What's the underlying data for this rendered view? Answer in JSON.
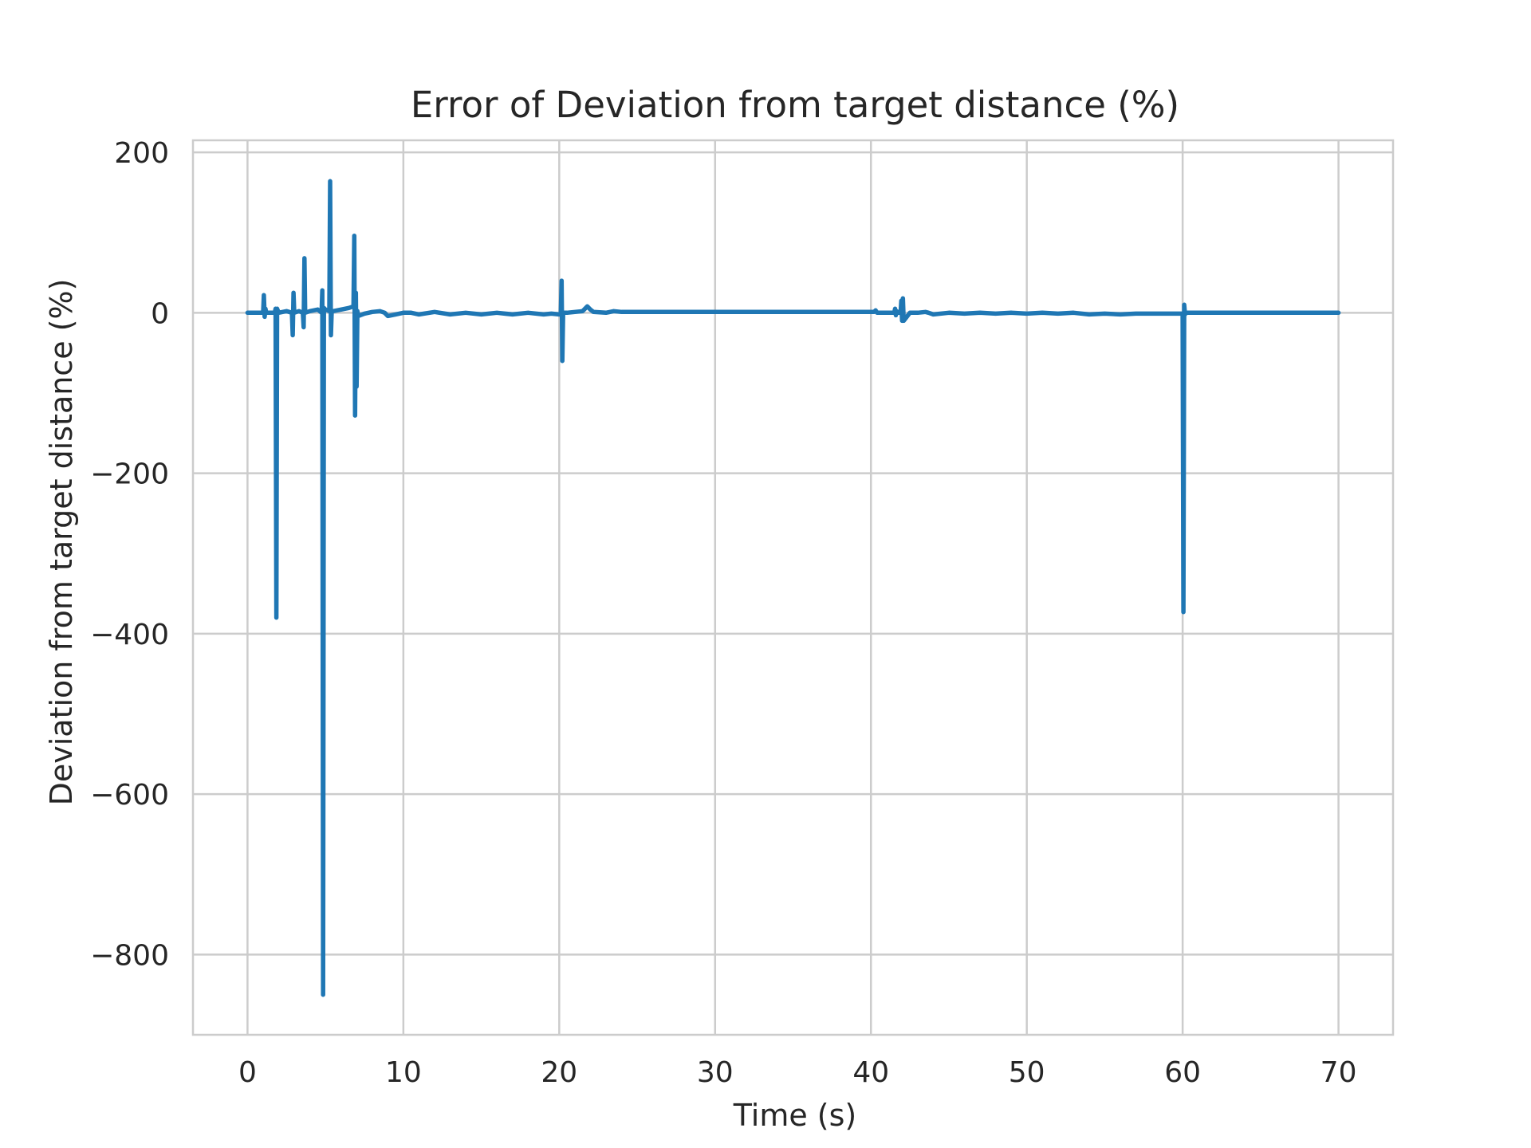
{
  "chart_data": {
    "type": "line",
    "title": "Error of Deviation from target distance (%)",
    "xlabel": "Time (s)",
    "ylabel": "Deviation from target distance (%)",
    "xlim": [
      -3.5,
      73.5
    ],
    "ylim": [
      -900,
      215
    ],
    "xticks": [
      0,
      10,
      20,
      30,
      40,
      50,
      60,
      70
    ],
    "yticks": [
      -800,
      -600,
      -400,
      -200,
      0,
      200
    ],
    "xtick_labels": [
      "0",
      "10",
      "20",
      "30",
      "40",
      "50",
      "60",
      "70"
    ],
    "ytick_labels": [
      "−800",
      "−600",
      "−400",
      "−200",
      "0",
      "200"
    ],
    "grid": true,
    "color": "#1f77b4",
    "series": [
      {
        "x": [
          0,
          0.5,
          1.0,
          1.05,
          1.1,
          1.15,
          1.2,
          1.5,
          1.75,
          1.8,
          1.85,
          1.9,
          2.0,
          2.5,
          2.85,
          2.9,
          2.95,
          3.0,
          3.3,
          3.55,
          3.6,
          3.65,
          3.7,
          4.0,
          4.5,
          4.75,
          4.8,
          4.85,
          4.9,
          5.0,
          5.25,
          5.3,
          5.35,
          5.4,
          5.5,
          6.0,
          6.5,
          6.8,
          6.85,
          6.9,
          6.95,
          7.0,
          7.05,
          7.1,
          7.5,
          8.0,
          8.5,
          8.8,
          9.0,
          9.5,
          10.0,
          10.5,
          11.0,
          12.0,
          13.0,
          14.0,
          15.0,
          16.0,
          17.0,
          18.0,
          19.0,
          19.5,
          20.0,
          20.1,
          20.15,
          20.2,
          20.25,
          20.3,
          20.5,
          21.0,
          21.5,
          21.8,
          22.0,
          22.2,
          23.0,
          23.5,
          24.0,
          25.0,
          26.0,
          27.0,
          28.0,
          30.0,
          32.0,
          34.0,
          36.0,
          38.0,
          40.0,
          40.2,
          40.3,
          40.4,
          41.0,
          41.5,
          41.55,
          41.6,
          41.65,
          41.7,
          41.9,
          41.95,
          42.0,
          42.05,
          42.1,
          42.5,
          43.0,
          43.5,
          43.7,
          44.0,
          45.0,
          46.0,
          47.0,
          48.0,
          49.0,
          50.0,
          51.0,
          52.0,
          53.0,
          54.0,
          55.0,
          56.0,
          57.0,
          58.0,
          59.0,
          59.9,
          60.0,
          60.05,
          60.1,
          60.15,
          60.2,
          61.0,
          62.0,
          63.0,
          64.0,
          65.0,
          66.0,
          67.0,
          68.0,
          69.0,
          70.0
        ],
        "y": [
          0,
          0,
          0,
          22,
          -5,
          5,
          0,
          0,
          0,
          5,
          -380,
          5,
          0,
          2,
          0,
          -28,
          25,
          0,
          2,
          0,
          -18,
          68,
          0,
          2,
          4,
          0,
          28,
          -850,
          6,
          4,
          2,
          164,
          -28,
          2,
          2,
          4,
          6,
          8,
          96,
          -128,
          25,
          -92,
          2,
          -4,
          -1,
          1,
          2,
          0,
          -4,
          -2,
          0,
          0,
          -2,
          1,
          -2,
          0,
          -2,
          0,
          -2,
          0,
          -2,
          -1,
          -2,
          -1,
          40,
          -60,
          0,
          0,
          0,
          1,
          2,
          8,
          4,
          1,
          0,
          2,
          1,
          1,
          1,
          1,
          1,
          1,
          1,
          1,
          1,
          1,
          1,
          1,
          3,
          0,
          0,
          0,
          5,
          -3,
          2,
          0,
          0,
          15,
          -10,
          18,
          -10,
          0,
          0,
          1,
          0,
          -2,
          0,
          -1,
          0,
          -1,
          0,
          -1,
          0,
          -1,
          0,
          -2,
          -1,
          -2,
          -1,
          -1,
          -1,
          -1,
          -1,
          -373,
          10,
          -2,
          0,
          0,
          0,
          0,
          0,
          0,
          0,
          0,
          0,
          0,
          0
        ]
      }
    ]
  }
}
